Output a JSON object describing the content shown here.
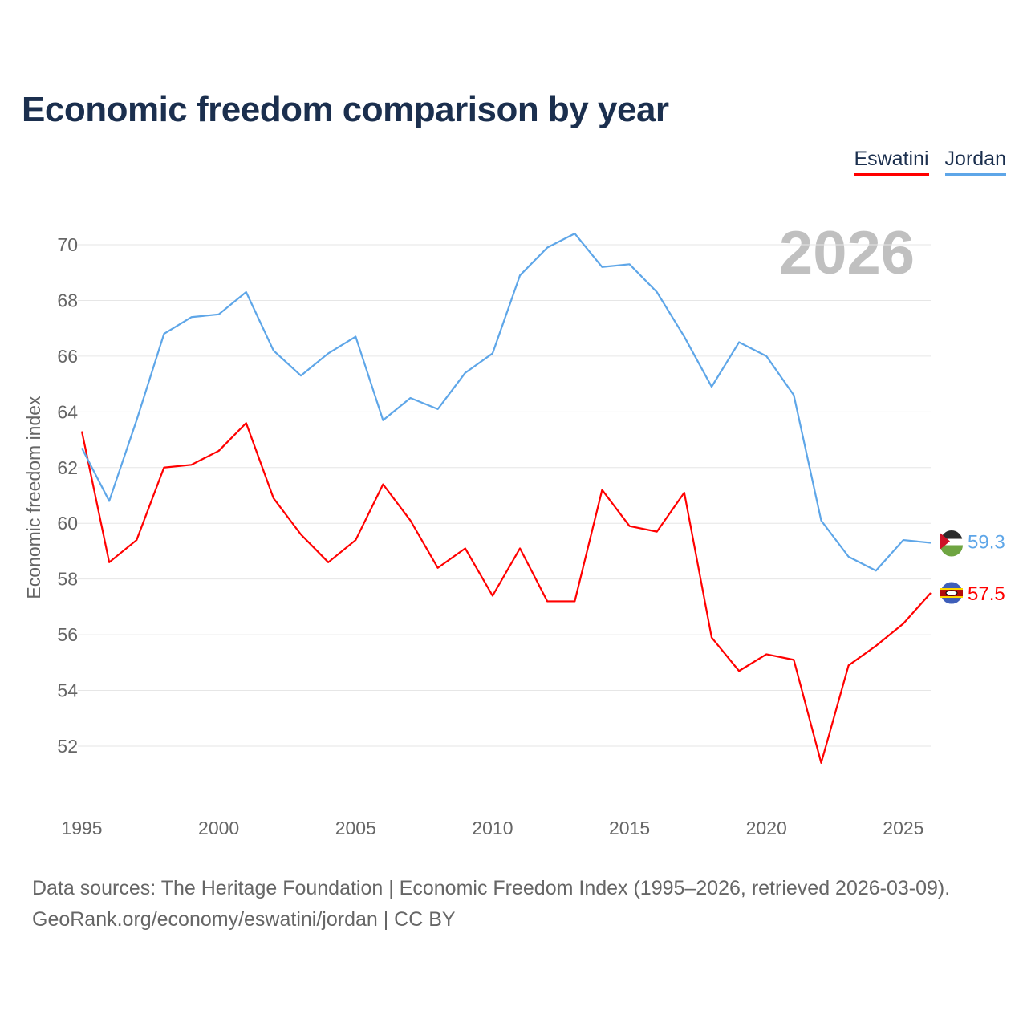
{
  "chart_data": {
    "type": "line",
    "title": "Economic freedom comparison by year",
    "xlabel": "",
    "ylabel": "Economic freedom index",
    "xlim": [
      1995,
      2026
    ],
    "ylim": [
      50,
      72
    ],
    "x_ticks": [
      1995,
      2000,
      2005,
      2010,
      2015,
      2020,
      2025
    ],
    "y_ticks": [
      52,
      54,
      56,
      58,
      60,
      62,
      64,
      66,
      68,
      70
    ],
    "grid": true,
    "legend_position": "top-right",
    "year_watermark": "2026",
    "x": [
      1995,
      1996,
      1997,
      1998,
      1999,
      2000,
      2001,
      2002,
      2003,
      2004,
      2005,
      2006,
      2007,
      2008,
      2009,
      2010,
      2011,
      2012,
      2013,
      2014,
      2015,
      2016,
      2017,
      2018,
      2019,
      2020,
      2021,
      2022,
      2023,
      2024,
      2025,
      2026
    ],
    "series": [
      {
        "name": "Eswatini",
        "color": "#ff0000",
        "end_label": "57.5",
        "values": [
          63.3,
          58.6,
          59.4,
          62.0,
          62.1,
          62.6,
          63.6,
          60.9,
          59.6,
          58.6,
          59.4,
          61.4,
          60.1,
          58.4,
          59.1,
          57.4,
          59.1,
          57.2,
          57.2,
          61.2,
          59.9,
          59.7,
          61.1,
          55.9,
          54.7,
          55.3,
          55.1,
          51.4,
          54.9,
          55.6,
          56.4,
          57.5
        ]
      },
      {
        "name": "Jordan",
        "color": "#5ea6e8",
        "end_label": "59.3",
        "values": [
          62.7,
          60.8,
          63.7,
          66.8,
          67.4,
          67.5,
          68.3,
          66.2,
          65.3,
          66.1,
          66.7,
          63.7,
          64.5,
          64.1,
          65.4,
          66.1,
          68.9,
          69.9,
          70.4,
          69.2,
          69.3,
          68.3,
          66.7,
          64.9,
          66.5,
          66.0,
          64.6,
          60.1,
          58.8,
          58.3,
          59.4,
          59.3
        ]
      }
    ]
  },
  "source": {
    "line1": "Data sources: The Heritage Foundation | Economic Freedom Index (1995–2026, retrieved 2026-03-09).",
    "line2": "GeoRank.org/economy/eswatini/jordan | CC BY"
  }
}
